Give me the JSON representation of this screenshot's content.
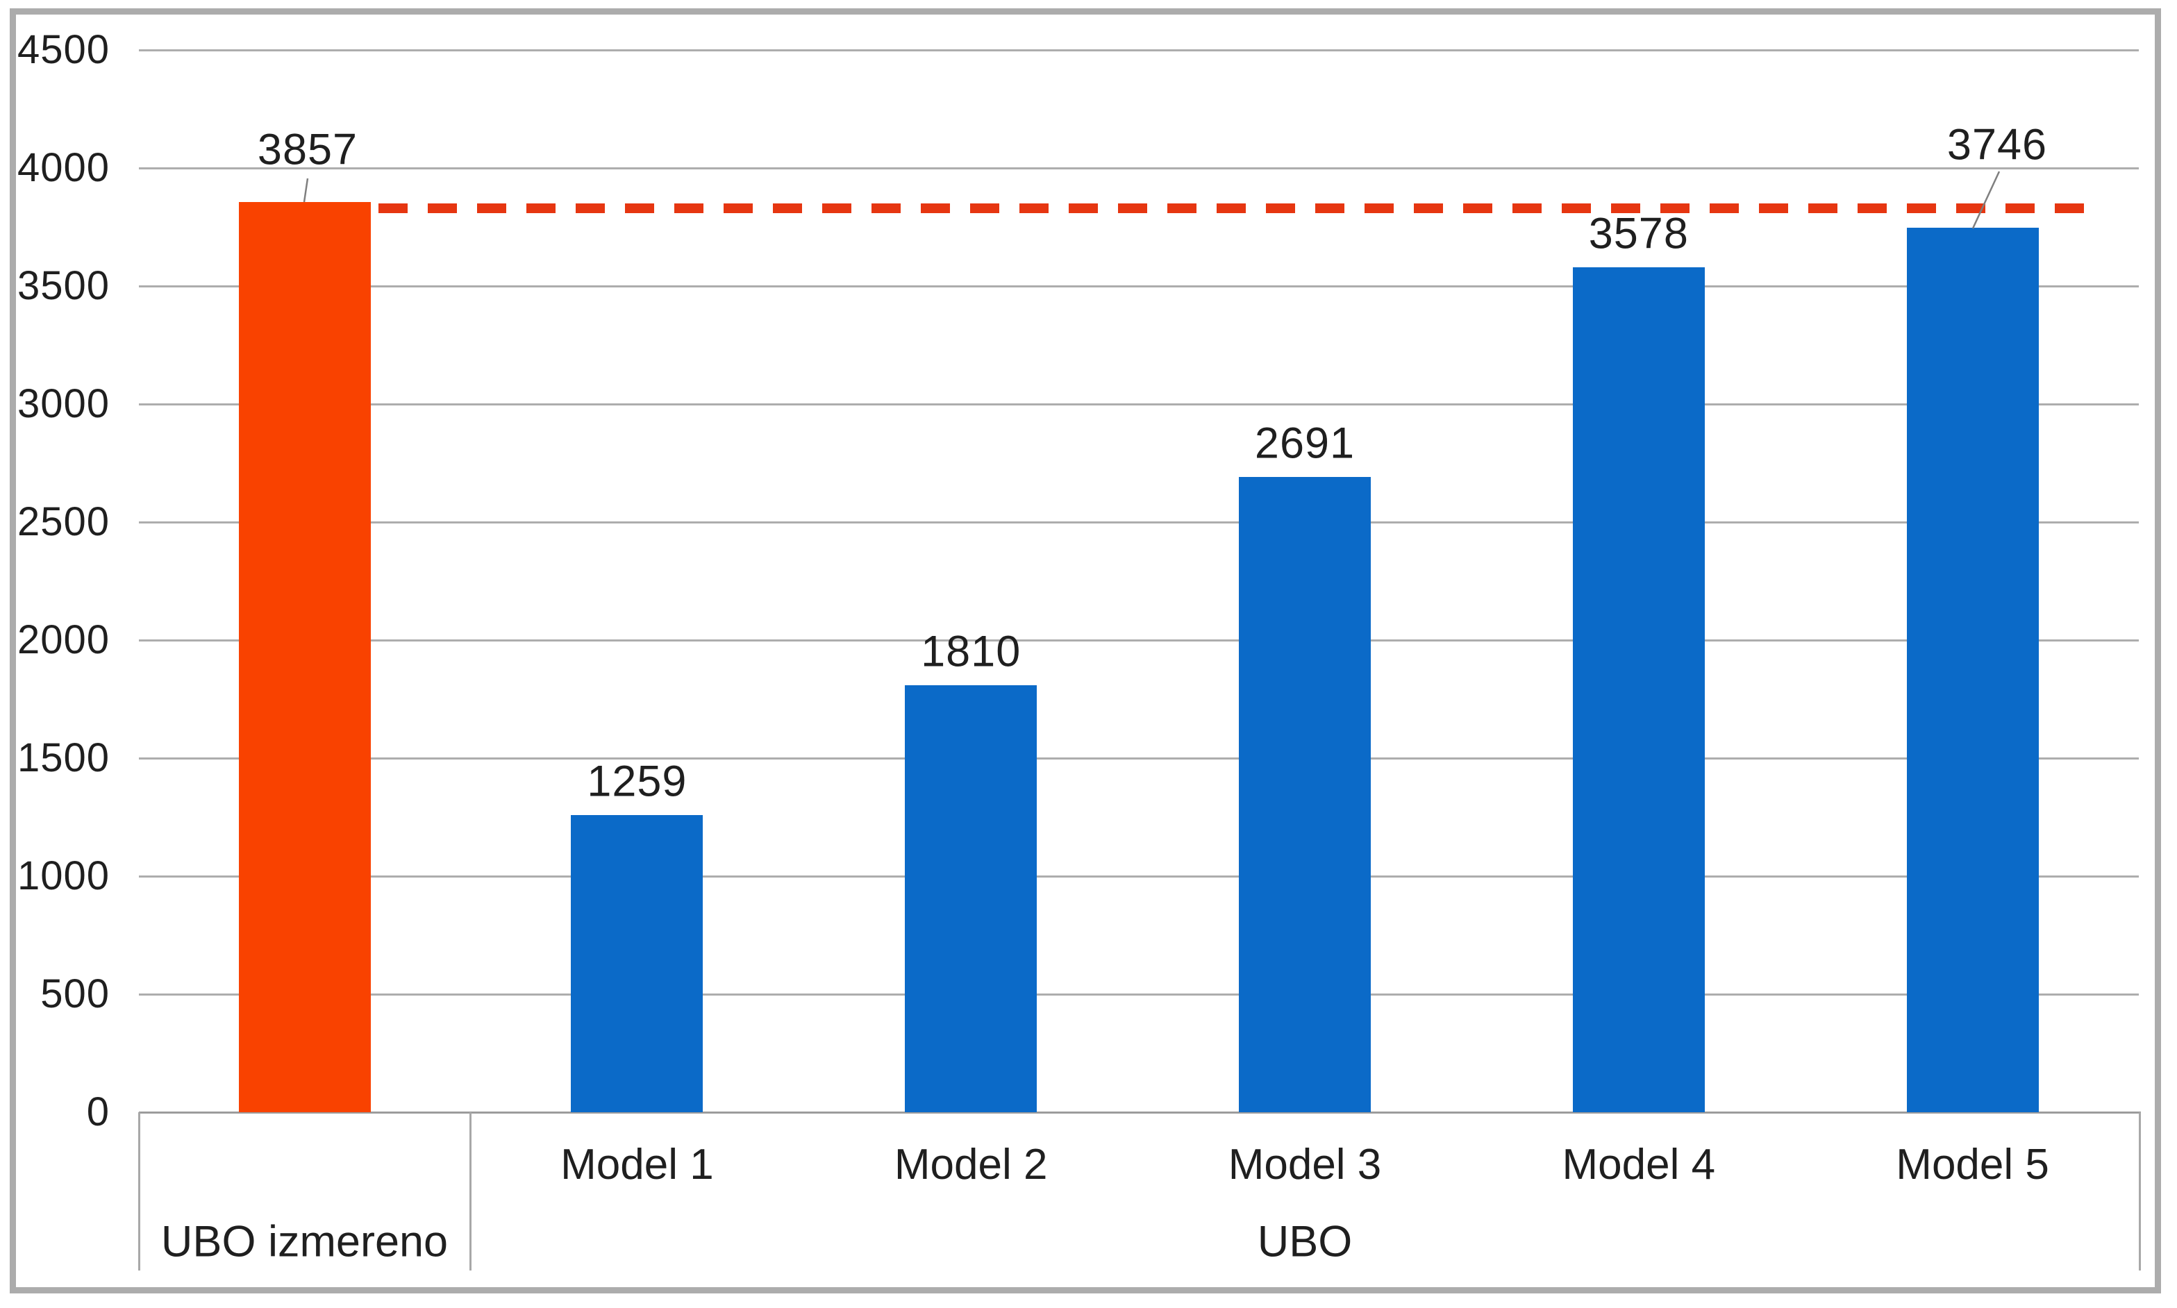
{
  "chart_data": {
    "type": "bar",
    "title": "",
    "legend": "none",
    "grid": "horizontal",
    "ylim": [
      0,
      4500
    ],
    "y_tick_step": 500,
    "y_ticks": [
      0,
      500,
      1000,
      1500,
      2000,
      2500,
      3000,
      3500,
      4000,
      4500
    ],
    "bars": [
      {
        "category": "",
        "group": "UBO izmereno",
        "value": 3857,
        "label": "3857",
        "color": "#f94200",
        "leader_line": true
      },
      {
        "category": "Model 1",
        "group": "UBO",
        "value": 1259,
        "label": "1259",
        "color": "#0b6ac8",
        "leader_line": false
      },
      {
        "category": "Model 2",
        "group": "UBO",
        "value": 1810,
        "label": "1810",
        "color": "#0b6ac8",
        "leader_line": false
      },
      {
        "category": "Model 3",
        "group": "UBO",
        "value": 2691,
        "label": "2691",
        "color": "#0b6ac8",
        "leader_line": false
      },
      {
        "category": "Model 4",
        "group": "UBO",
        "value": 3578,
        "label": "3578",
        "color": "#0b6ac8",
        "leader_line": false
      },
      {
        "category": "Model 5",
        "group": "UBO",
        "value": 3746,
        "label": "3746",
        "color": "#0b6ac8",
        "leader_line": true
      }
    ],
    "groups": [
      {
        "label": "UBO izmereno",
        "category_count": 1
      },
      {
        "label": "UBO",
        "category_count": 5
      }
    ],
    "reference_line": {
      "value": 3857,
      "style": "dashed",
      "color": "#e63611"
    },
    "colors": {
      "measured_bar": "#f94200",
      "model_bar": "#0b6ac8",
      "reference_dash": "#e63611",
      "gridline": "#adadad",
      "axis_line": "#9c9c9c",
      "text": "#1f1f1f",
      "frame": "#acacac",
      "leader_line": "#7f7f7f"
    }
  }
}
